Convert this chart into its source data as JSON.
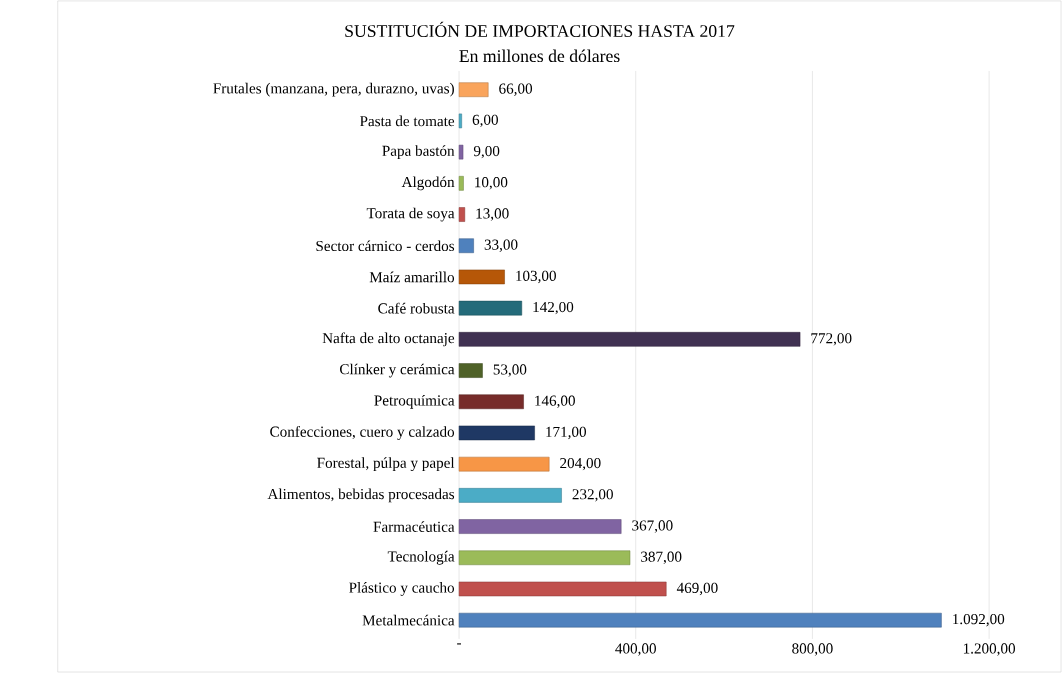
{
  "chart_data": {
    "type": "bar",
    "orientation": "horizontal",
    "title": "SUSTITUCIÓN DE IMPORTACIONES HASTA 2017",
    "subtitle": "En millones de dólares",
    "categories": [
      "Frutales (manzana, pera, durazno, uvas)",
      "Pasta de tomate",
      "Papa bastón",
      "Algodón",
      "Torata de soya",
      "Sector cárnico - cerdos",
      "Maíz amarillo",
      "Café robusta",
      "Nafta de alto octanaje",
      "Clínker y cerámica",
      "Petroquímica",
      "Confecciones, cuero y calzado",
      "Forestal, púlpa y papel",
      "Alimentos, bebidas procesadas",
      "Farmacéutica",
      "Tecnología",
      "Plástico y caucho",
      "Metalmecánica"
    ],
    "values": [
      66,
      6,
      9,
      10,
      13,
      33,
      103,
      142,
      772,
      53,
      146,
      171,
      204,
      232,
      367,
      387,
      469,
      1092
    ],
    "value_labels": [
      "66,00",
      "6,00",
      "9,00",
      "10,00",
      "13,00",
      "33,00",
      "103,00",
      "142,00",
      "772,00",
      "53,00",
      "146,00",
      "171,00",
      "204,00",
      "232,00",
      "367,00",
      "387,00",
      "469,00",
      "1.092,00"
    ],
    "colors": [
      "#f9a45c",
      "#4bacc6",
      "#8064a2",
      "#9bbb59",
      "#c0504d",
      "#4f81bd",
      "#b65708",
      "#246b7a",
      "#403152",
      "#4f6228",
      "#772c2a",
      "#1f3864",
      "#f79646",
      "#4bacc6",
      "#8064a2",
      "#9bbb59",
      "#c0504d",
      "#4f81bd"
    ],
    "xlim": [
      0,
      1200
    ],
    "xticks": [
      {
        "value": 0,
        "label": "-"
      },
      {
        "value": 400,
        "label": "400,00"
      },
      {
        "value": 800,
        "label": "800,00"
      },
      {
        "value": 1200,
        "label": "1.200,00"
      }
    ],
    "grid": "x"
  }
}
